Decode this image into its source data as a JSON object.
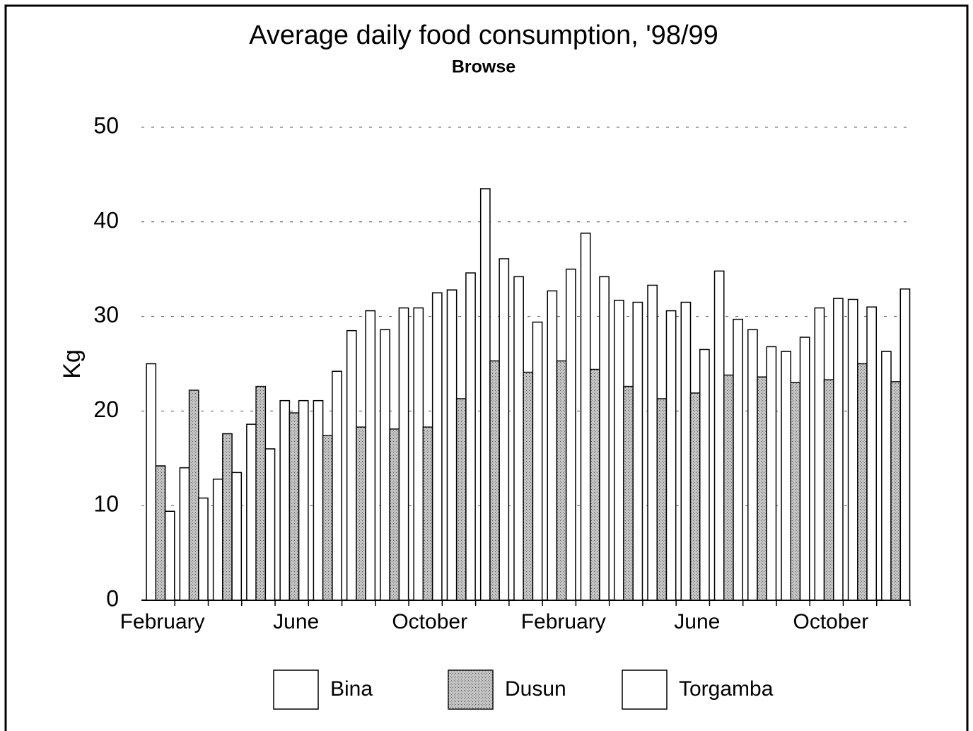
{
  "chart_data": {
    "type": "bar",
    "title": "Average daily food consumption, '98/99",
    "subtitle": "Browse",
    "y_label": "Kg",
    "categories": [
      "February",
      null,
      null,
      null,
      "June",
      null,
      null,
      null,
      "October",
      null,
      null,
      null,
      "February",
      null,
      null,
      null,
      "June",
      null,
      null,
      null,
      "October",
      null,
      null
    ],
    "series": [
      {
        "name": "Bina",
        "color": "#ffffff",
        "values": [
          25,
          14,
          12.8,
          18.6,
          21.1,
          21.1,
          28.5,
          28.6,
          30.9,
          32.8,
          43.5,
          34.2,
          32.7,
          38.8,
          31.7,
          33.3,
          31.5,
          34.8,
          28.6,
          26.3,
          30.9,
          31.8,
          26.3
        ]
      },
      {
        "name": "Dusun",
        "color": "#c4c4c4",
        "values": [
          14.2,
          22.2,
          17.6,
          22.6,
          19.8,
          17.4,
          18.3,
          18.1,
          18.3,
          21.3,
          25.3,
          24.1,
          25.3,
          24.4,
          22.6,
          21.3,
          21.9,
          23.8,
          23.6,
          23,
          23.3,
          25,
          23.1
        ]
      },
      {
        "name": "Torgamba",
        "color": "#ffffff",
        "values": [
          9.4,
          10.8,
          13.5,
          16,
          21.1,
          24.2,
          30.6,
          30.9,
          32.5,
          34.6,
          36.1,
          29.4,
          35,
          34.2,
          31.5,
          30.6,
          26.5,
          29.7,
          26.8,
          27.8,
          31.9,
          31,
          32.9
        ]
      }
    ],
    "ylim": [
      0,
      50
    ],
    "yticks": [
      0,
      10,
      20,
      30,
      40,
      50
    ],
    "grid": true,
    "legend": "bottom"
  }
}
